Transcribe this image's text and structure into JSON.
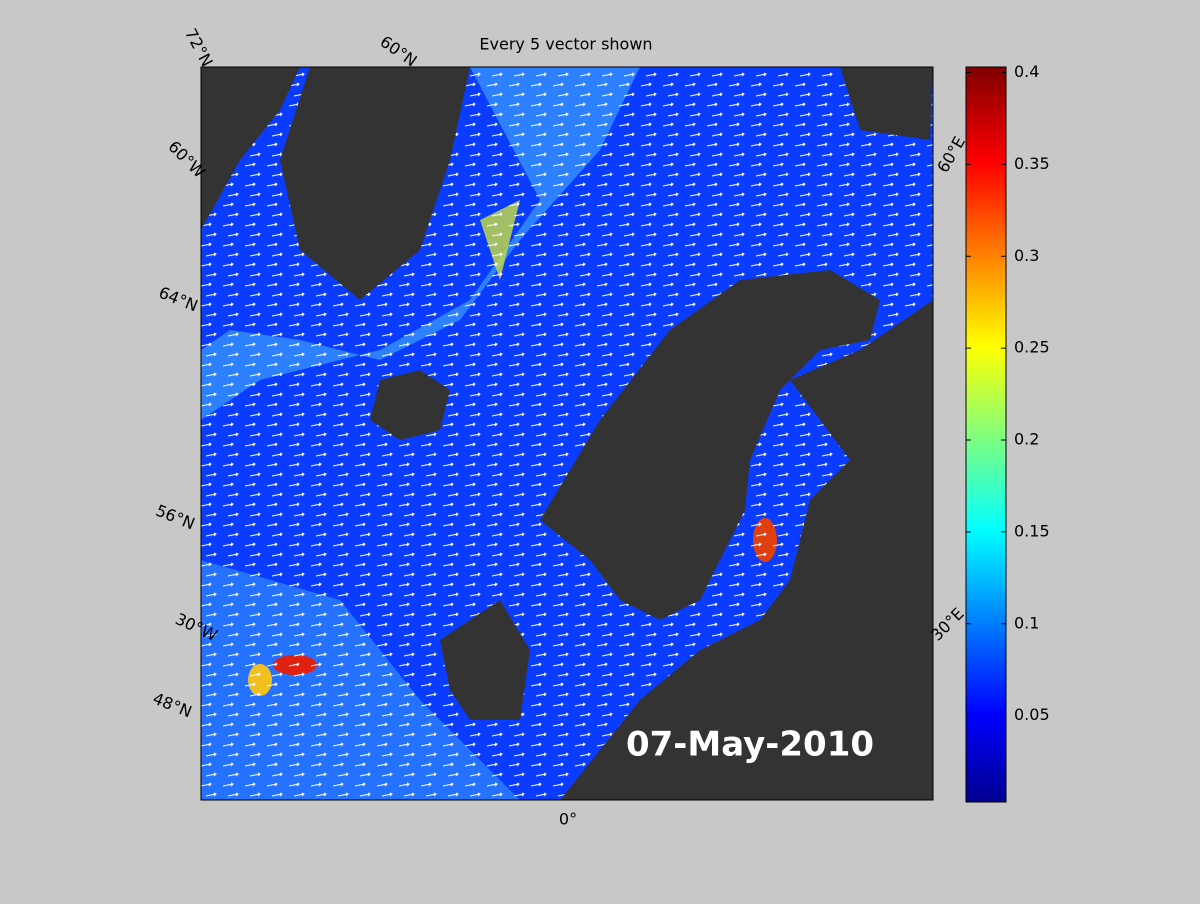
{
  "title": "Every 5 vector shown",
  "date_label": "07-May-2010",
  "graticule_labels": [
    "72°N",
    "60°N",
    "60°W",
    "64°N",
    "56°N",
    "30°W",
    "48°N",
    "0°",
    "60°E",
    "30°E"
  ],
  "colorbar": {
    "colormap": "jet",
    "lim": [
      0.003,
      0.403
    ],
    "ticks": [
      0.05,
      0.1,
      0.15,
      0.2,
      0.25,
      0.3,
      0.35,
      0.4
    ]
  }
}
